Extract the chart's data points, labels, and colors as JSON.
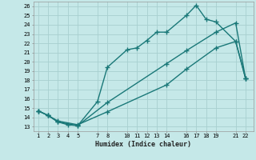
{
  "xlabel": "Humidex (Indice chaleur)",
  "bg_color": "#c5e8e8",
  "grid_color": "#a8d0d0",
  "line_color": "#1a7878",
  "xlim": [
    0.5,
    22.8
  ],
  "ylim": [
    12.5,
    26.5
  ],
  "xticks": [
    1,
    2,
    3,
    4,
    5,
    7,
    8,
    10,
    11,
    12,
    13,
    14,
    16,
    17,
    18,
    19,
    21,
    22
  ],
  "yticks": [
    13,
    14,
    15,
    16,
    17,
    18,
    19,
    20,
    21,
    22,
    23,
    24,
    25,
    26
  ],
  "line1_x": [
    1,
    2,
    3,
    4,
    5,
    7,
    8,
    10,
    11,
    12,
    13,
    14,
    16,
    17,
    18,
    19,
    21,
    22
  ],
  "line1_y": [
    14.7,
    14.2,
    13.5,
    13.2,
    13.1,
    15.7,
    19.4,
    21.3,
    21.5,
    22.3,
    23.2,
    23.2,
    25.0,
    26.1,
    24.6,
    24.3,
    22.2,
    18.2
  ],
  "line2_x": [
    1,
    2,
    3,
    5,
    8,
    14,
    16,
    19,
    21,
    22
  ],
  "line2_y": [
    14.7,
    14.2,
    13.6,
    13.2,
    14.6,
    17.5,
    19.2,
    21.5,
    22.2,
    18.2
  ],
  "line3_x": [
    1,
    2,
    3,
    5,
    8,
    14,
    16,
    19,
    21,
    22
  ],
  "line3_y": [
    14.7,
    14.2,
    13.5,
    13.1,
    15.6,
    19.8,
    21.2,
    23.2,
    24.2,
    18.2
  ],
  "marker": "+",
  "markersize": 4,
  "linewidth": 1.0
}
